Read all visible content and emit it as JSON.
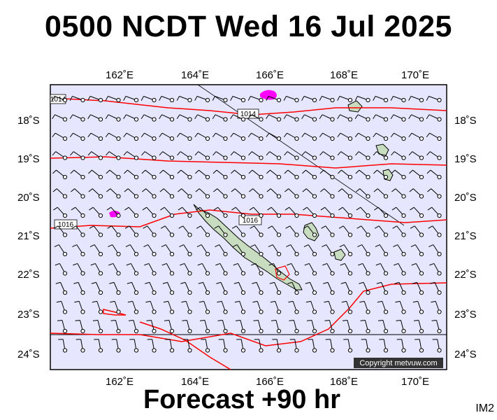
{
  "header": {
    "title": "0500 NCDT Wed 16 Jul 2025"
  },
  "footer": {
    "forecast": "Forecast +90 hr",
    "tag": "IM2"
  },
  "map": {
    "copyright": "Copyright metvuw.com",
    "lon_labels": [
      "162˚E",
      "164˚E",
      "166˚E",
      "168˚E",
      "170˚E"
    ],
    "lat_labels": [
      "18˚S",
      "19˚S",
      "20˚S",
      "21˚S",
      "22˚S",
      "23˚S",
      "24˚S"
    ],
    "isobar_labels": [
      "1014",
      "1014",
      "1016",
      "1016"
    ],
    "colors": {
      "ocean": "#e6e6ff",
      "isobar": "#ff0000",
      "land": "#c8dcc0",
      "rain": "#ff00ff",
      "frame": "#000000"
    }
  }
}
